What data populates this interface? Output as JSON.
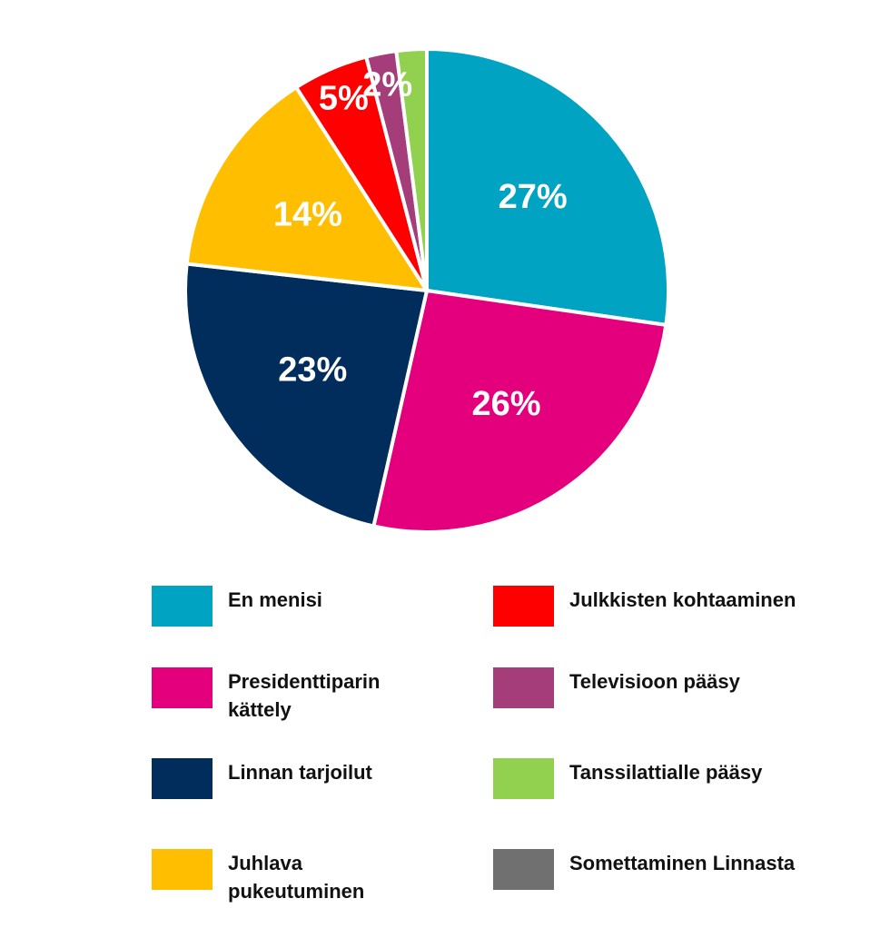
{
  "chart_data": {
    "type": "pie",
    "categories": [
      "En menisi",
      "Presidenttiparin kättely",
      "Linnan tarjoilut",
      "Juhlava pukeutuminen",
      "Julkkisten kohtaaminen",
      "Televisioon pääsy",
      "Tanssilattialle pääsy",
      "Somettaminen Linnasta"
    ],
    "values": [
      27,
      26,
      23,
      14,
      5,
      2,
      2,
      0
    ],
    "value_labels": [
      "27%",
      "26%",
      "23%",
      "14%",
      "5%",
      "2%",
      null,
      null
    ],
    "colors": [
      "#00a3c1",
      "#e4007c",
      "#002d5c",
      "#ffbf00",
      "#ff0000",
      "#a43d79",
      "#92d050",
      "#707070"
    ]
  }
}
